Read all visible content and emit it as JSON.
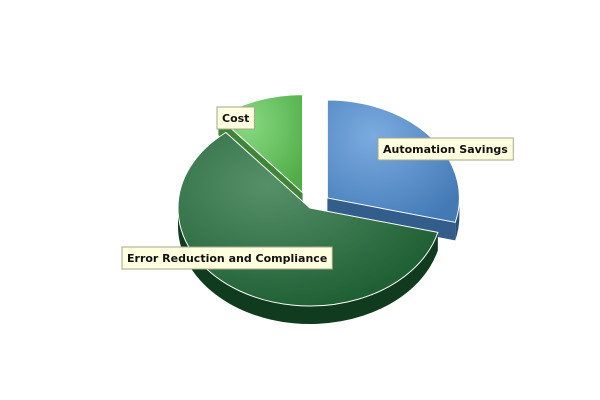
{
  "chart_data": {
    "type": "pie",
    "style": "3d-exploded",
    "slices": [
      {
        "label": "Automation Savings",
        "value": 29,
        "color": "#4f8fd6",
        "exploded": true
      },
      {
        "label": "Error Reduction and Compliance",
        "value": 60,
        "color": "#1e6b37",
        "exploded": false
      },
      {
        "label": "Cost",
        "value": 11,
        "color": "#5fcc55",
        "exploded": true
      }
    ]
  }
}
